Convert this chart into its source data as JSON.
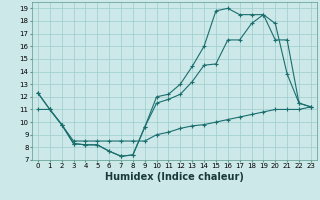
{
  "xlabel": "Humidex (Indice chaleur)",
  "bg_color": "#cce8e8",
  "line_color": "#1a6e6e",
  "grid_color": "#9ecece",
  "line1_x": [
    0,
    1,
    2,
    3,
    4,
    5,
    6,
    7,
    8,
    9,
    10,
    11,
    12,
    13,
    14,
    15,
    16,
    17,
    18,
    19,
    20,
    21,
    22,
    23
  ],
  "line1_y": [
    12.3,
    11.0,
    9.8,
    8.3,
    8.2,
    8.2,
    7.7,
    7.3,
    7.4,
    9.6,
    12.0,
    12.2,
    13.0,
    14.4,
    16.0,
    18.8,
    19.0,
    18.5,
    18.5,
    18.5,
    17.8,
    13.8,
    11.5,
    11.2
  ],
  "line2_x": [
    0,
    1,
    2,
    3,
    4,
    5,
    6,
    7,
    8,
    9,
    10,
    11,
    12,
    13,
    14,
    15,
    16,
    17,
    18,
    19,
    20,
    21,
    22,
    23
  ],
  "line2_y": [
    12.3,
    11.0,
    9.8,
    8.3,
    8.2,
    8.2,
    7.7,
    7.3,
    7.4,
    9.6,
    11.5,
    11.8,
    12.2,
    13.2,
    14.5,
    14.6,
    16.5,
    16.5,
    17.8,
    18.5,
    16.5,
    16.5,
    11.5,
    11.2
  ],
  "line3_x": [
    0,
    1,
    2,
    3,
    4,
    5,
    6,
    7,
    8,
    9,
    10,
    11,
    12,
    13,
    14,
    15,
    16,
    17,
    18,
    19,
    20,
    21,
    22,
    23
  ],
  "line3_y": [
    11.0,
    11.0,
    9.8,
    8.5,
    8.5,
    8.5,
    8.5,
    8.5,
    8.5,
    8.5,
    9.0,
    9.2,
    9.5,
    9.7,
    9.8,
    10.0,
    10.2,
    10.4,
    10.6,
    10.8,
    11.0,
    11.0,
    11.0,
    11.2
  ],
  "ylim": [
    7,
    19.5
  ],
  "xlim": [
    -0.5,
    23.5
  ],
  "yticks": [
    7,
    8,
    9,
    10,
    11,
    12,
    13,
    14,
    15,
    16,
    17,
    18,
    19
  ],
  "xticks": [
    0,
    1,
    2,
    3,
    4,
    5,
    6,
    7,
    8,
    9,
    10,
    11,
    12,
    13,
    14,
    15,
    16,
    17,
    18,
    19,
    20,
    21,
    22,
    23
  ],
  "tick_fontsize": 5.0,
  "xlabel_fontsize": 7.0,
  "marker": "+",
  "markersize": 2.5,
  "linewidth": 0.8
}
